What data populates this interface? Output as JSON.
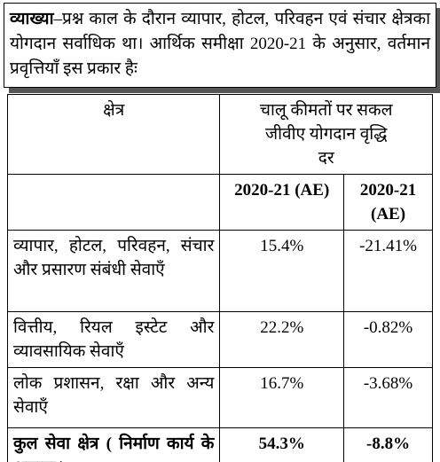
{
  "explanation": {
    "label": "व्याख्या",
    "text": "–प्रश्न काल के दौरान व्यापार, होटल, परिवहन एवं संचार क्षेत्रका योगदान सर्वाधिक था। आर्थिक समीक्षा 2020-21 के अनुसार, वर्तमान प्रवृत्तियाँ इस प्रकार हैः"
  },
  "table": {
    "header": [
      "क्षेत्र",
      "चालू कीमतों पर सकल जीवीए योगदान वृद्धि दर"
    ],
    "subheader": [
      "2020-21 (AE)",
      "2020-21 (AE)"
    ],
    "rows": [
      [
        "व्यापार, होटल, परिवहन, संचार और प्रसारण संबंधी सेवाएँ",
        "15.4%",
        "-21.41%"
      ],
      [
        "वित्तीय, रियल इस्टेट और व्यावसायिक सेवाएँ",
        "22.2%",
        "-0.82%"
      ],
      [
        "लोक प्रशासन, रक्षा और अन्य सेवाएँ",
        "16.7%",
        "-3.68%"
      ],
      [
        "कुल सेवा क्षेत्र ( निर्माण कार्य के अलावा )",
        "54.3%",
        "-8.8%"
      ]
    ]
  }
}
